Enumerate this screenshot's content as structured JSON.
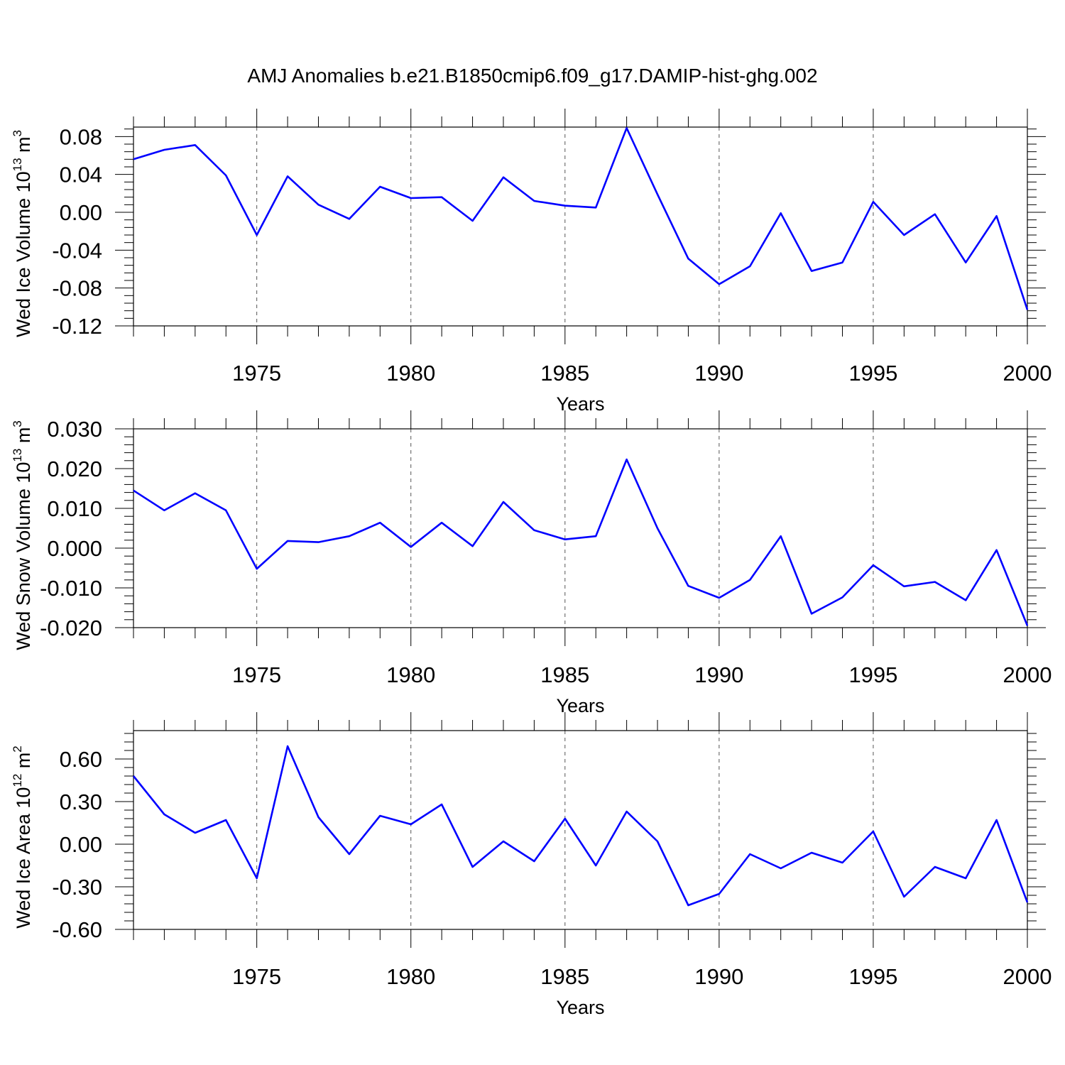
{
  "title": "AMJ Anomalies b.e21.B1850cmip6.f09_g17.DAMIP-hist-ghg.002",
  "chart_data": [
    {
      "type": "line",
      "ylabel_main": "Wed Ice Volume 10",
      "ylabel_sup": "13",
      "ylabel_unit": " m",
      "ylabel_unit_sup": "3",
      "xlabel": "Years",
      "xlim": [
        1971,
        2000
      ],
      "ylim": [
        -0.12,
        0.09
      ],
      "yticks": [
        -0.12,
        -0.08,
        -0.04,
        0.0,
        0.04,
        0.08
      ],
      "ytick_labels": [
        "-0.12",
        "-0.08",
        "-0.04",
        "0.00",
        "0.04",
        "0.08"
      ],
      "xticks": [
        1975,
        1980,
        1985,
        1990,
        1995,
        2000
      ],
      "xtick_labels": [
        "1975",
        "1980",
        "1985",
        "1990",
        "1995",
        "2000"
      ],
      "grid": "dashed vertical at labeled x ticks",
      "color": "#0000ff",
      "x": [
        1971,
        1972,
        1973,
        1974,
        1975,
        1976,
        1977,
        1978,
        1979,
        1980,
        1981,
        1982,
        1983,
        1984,
        1985,
        1986,
        1987,
        1988,
        1989,
        1990,
        1991,
        1992,
        1993,
        1994,
        1995,
        1996,
        1997,
        1998,
        1999,
        2000
      ],
      "y": [
        0.056,
        0.066,
        0.071,
        0.039,
        -0.024,
        0.038,
        0.008,
        -0.007,
        0.027,
        0.015,
        0.016,
        -0.009,
        0.037,
        0.012,
        0.007,
        0.005,
        0.089,
        0.019,
        -0.049,
        -0.076,
        -0.057,
        -0.001,
        -0.062,
        -0.053,
        0.011,
        -0.024,
        -0.002,
        -0.053,
        -0.004,
        -0.103
      ]
    },
    {
      "type": "line",
      "ylabel_main": "Wed Snow Volume 10",
      "ylabel_sup": "13",
      "ylabel_unit": " m",
      "ylabel_unit_sup": "3",
      "xlabel": "Years",
      "xlim": [
        1971,
        2000
      ],
      "ylim": [
        -0.02,
        0.03
      ],
      "yticks": [
        -0.02,
        -0.01,
        0.0,
        0.01,
        0.02,
        0.03
      ],
      "ytick_labels": [
        "-0.020",
        "-0.010",
        "0.000",
        "0.010",
        "0.020",
        "0.030"
      ],
      "xticks": [
        1975,
        1980,
        1985,
        1990,
        1995,
        2000
      ],
      "xtick_labels": [
        "1975",
        "1980",
        "1985",
        "1990",
        "1995",
        "2000"
      ],
      "grid": "dashed vertical at labeled x ticks",
      "color": "#0000ff",
      "x": [
        1971,
        1972,
        1973,
        1974,
        1975,
        1976,
        1977,
        1978,
        1979,
        1980,
        1981,
        1982,
        1983,
        1984,
        1985,
        1986,
        1987,
        1988,
        1989,
        1990,
        1991,
        1992,
        1993,
        1994,
        1995,
        1996,
        1997,
        1998,
        1999,
        2000
      ],
      "y": [
        0.0145,
        0.0095,
        0.0138,
        0.0095,
        -0.0052,
        0.0018,
        0.0015,
        0.003,
        0.0064,
        0.0003,
        0.0064,
        0.0005,
        0.0116,
        0.0045,
        0.0022,
        0.003,
        0.0223,
        0.005,
        -0.0095,
        -0.0125,
        -0.008,
        0.003,
        -0.0165,
        -0.0124,
        -0.0043,
        -0.0096,
        -0.0085,
        -0.0131,
        -0.0005,
        -0.0195
      ]
    },
    {
      "type": "line",
      "ylabel_main": "Wed Ice Area 10",
      "ylabel_sup": "12",
      "ylabel_unit": " m",
      "ylabel_unit_sup": "2",
      "xlabel": "Years",
      "xlim": [
        1971,
        2000
      ],
      "ylim": [
        -0.6,
        0.8
      ],
      "yticks": [
        -0.6,
        -0.3,
        0.0,
        0.3,
        0.6
      ],
      "ytick_labels": [
        "-0.60",
        "-0.30",
        "0.00",
        "0.30",
        "0.60"
      ],
      "xticks": [
        1975,
        1980,
        1985,
        1990,
        1995,
        2000
      ],
      "xtick_labels": [
        "1975",
        "1980",
        "1985",
        "1990",
        "1995",
        "2000"
      ],
      "grid": "dashed vertical at labeled x ticks",
      "color": "#0000ff",
      "x": [
        1971,
        1972,
        1973,
        1974,
        1975,
        1976,
        1977,
        1978,
        1979,
        1980,
        1981,
        1982,
        1983,
        1984,
        1985,
        1986,
        1987,
        1988,
        1989,
        1990,
        1991,
        1992,
        1993,
        1994,
        1995,
        1996,
        1997,
        1998,
        1999,
        2000
      ],
      "y": [
        0.48,
        0.21,
        0.08,
        0.17,
        -0.24,
        0.69,
        0.19,
        -0.07,
        0.2,
        0.14,
        0.28,
        -0.16,
        0.02,
        -0.12,
        0.18,
        -0.15,
        0.23,
        0.02,
        -0.43,
        -0.35,
        -0.07,
        -0.17,
        -0.06,
        -0.13,
        0.09,
        -0.37,
        -0.16,
        -0.24,
        0.17,
        -0.41
      ]
    }
  ]
}
